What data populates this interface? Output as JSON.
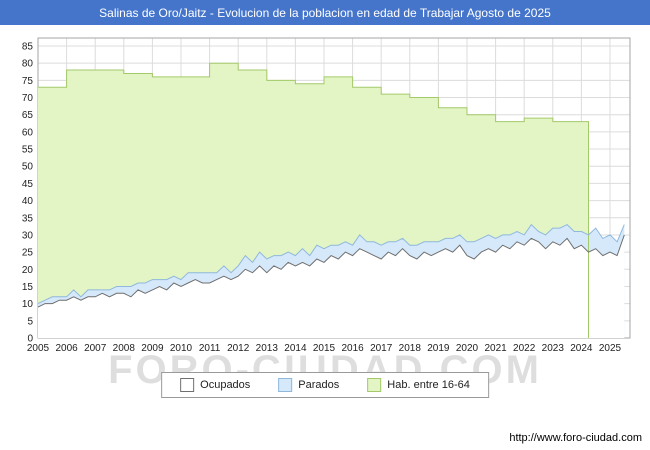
{
  "title_bar": {
    "text": "Salinas de Oro/Jaitz - Evolucion de la poblacion en edad de Trabajar Agosto de 2025",
    "bg": "#4575cb",
    "fg": "#ffffff"
  },
  "watermark": "FORO-CIUDAD.COM",
  "footer": {
    "url": "http://www.foro-ciudad.com"
  },
  "legend": {
    "items": [
      {
        "label": "Ocupados",
        "fill": "#ffffff",
        "stroke": "#6f6f6f"
      },
      {
        "label": "Parados",
        "fill": "#d6e9fb",
        "stroke": "#8fb8dc"
      },
      {
        "label": "Hab. entre 16-64",
        "fill": "#e3f4c5",
        "stroke": "#a3c969"
      }
    ]
  },
  "chart_data": {
    "type": "area",
    "title": "Salinas de Oro/Jaitz - Evolucion de la poblacion en edad de Trabajar",
    "period": "Agosto de 2025",
    "x_range": [
      2005,
      2025.7
    ],
    "ylim": [
      0,
      85
    ],
    "y_ticks": [
      0,
      5,
      10,
      15,
      20,
      25,
      30,
      35,
      40,
      45,
      50,
      55,
      60,
      65,
      70,
      75,
      80,
      85
    ],
    "x_ticks": [
      2005,
      2006,
      2007,
      2008,
      2009,
      2010,
      2011,
      2012,
      2013,
      2014,
      2015,
      2016,
      2017,
      2018,
      2019,
      2020,
      2021,
      2022,
      2023,
      2024,
      2025
    ],
    "grid": true,
    "legend_position": "bottom",
    "colors": {
      "grid": "#dcdcdc",
      "axis_border": "#a6a6a6",
      "tick_text": "#222222"
    },
    "series": [
      {
        "id": "hab",
        "name": "Hab. entre 16-64",
        "shape": "step",
        "start": 2005,
        "step": 1,
        "end": 2024.25,
        "fill": "#e3f4c5",
        "stroke": "#a3c969",
        "values": [
          73,
          78,
          78,
          77,
          76,
          76,
          80,
          78,
          75,
          74,
          76,
          73,
          71,
          70,
          67,
          65,
          63,
          64,
          63,
          63
        ]
      },
      {
        "id": "ocupados",
        "name": "Ocupados",
        "shape": "linear",
        "start": 2005,
        "step": 0.25,
        "fill": "#ffffff",
        "stroke": "#6f6f6f",
        "values": [
          9,
          10,
          10,
          11,
          11,
          12,
          11,
          12,
          12,
          13,
          12,
          13,
          13,
          12,
          14,
          13,
          14,
          15,
          14,
          16,
          15,
          16,
          17,
          16,
          16,
          17,
          18,
          17,
          18,
          20,
          19,
          21,
          19,
          21,
          20,
          22,
          21,
          22,
          21,
          23,
          22,
          24,
          23,
          25,
          24,
          26,
          25,
          24,
          23,
          25,
          24,
          26,
          24,
          23,
          25,
          24,
          25,
          26,
          25,
          27,
          24,
          23,
          25,
          26,
          25,
          27,
          26,
          28,
          27,
          29,
          28,
          26,
          28,
          27,
          29,
          26,
          27,
          25,
          26,
          24,
          25,
          24,
          30
        ]
      },
      {
        "id": "parados",
        "name": "Parados",
        "shape": "linear",
        "start": 2005,
        "step": 0.25,
        "stack_on": "ocupados",
        "fill": "#d6e9fb",
        "stroke": "#8fb8dc",
        "values": [
          1,
          1,
          2,
          1,
          1,
          2,
          1,
          2,
          2,
          1,
          2,
          2,
          2,
          3,
          2,
          3,
          3,
          2,
          3,
          2,
          2,
          3,
          2,
          3,
          3,
          2,
          3,
          2,
          3,
          4,
          3,
          4,
          4,
          3,
          4,
          3,
          3,
          4,
          3,
          4,
          4,
          3,
          4,
          3,
          3,
          4,
          3,
          4,
          4,
          3,
          4,
          3,
          3,
          4,
          3,
          4,
          3,
          3,
          4,
          3,
          4,
          5,
          4,
          4,
          4,
          3,
          4,
          3,
          3,
          4,
          3,
          4,
          4,
          5,
          4,
          5,
          4,
          5,
          6,
          5,
          5,
          4,
          3
        ]
      }
    ]
  }
}
